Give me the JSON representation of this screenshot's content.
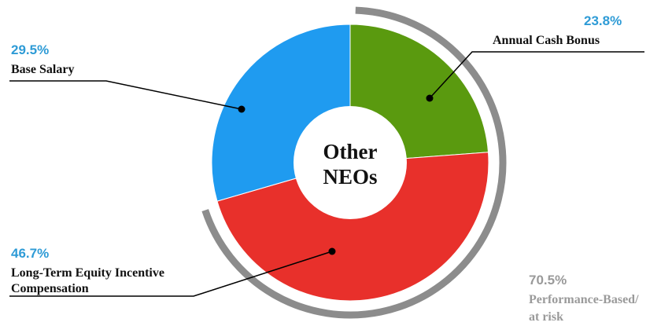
{
  "chart_data": {
    "type": "pie",
    "subtype": "donut",
    "center_label": [
      "Other",
      "NEOs"
    ],
    "slices": [
      {
        "label": "Annual Cash Bonus",
        "value": 23.8,
        "value_label": "23.8%",
        "color": "#5A9A0F"
      },
      {
        "label_lines": [
          "Long-Term Equity Incentive",
          "Compensation"
        ],
        "value": 46.7,
        "value_label": "46.7%",
        "color": "#E8302B"
      },
      {
        "label": "Base Salary",
        "value": 29.5,
        "value_label": "29.5%",
        "color": "#1F9BF0"
      }
    ],
    "bracket": {
      "value_label": "70.5%",
      "label_lines": [
        "Performance-Based/",
        "at risk"
      ],
      "color": "#8C8C8C",
      "covers": "Annual Cash Bonus + Long-Term Equity Incentive Compensation"
    },
    "accent_text_color": "#2E9BD6",
    "legend": "callouts"
  }
}
